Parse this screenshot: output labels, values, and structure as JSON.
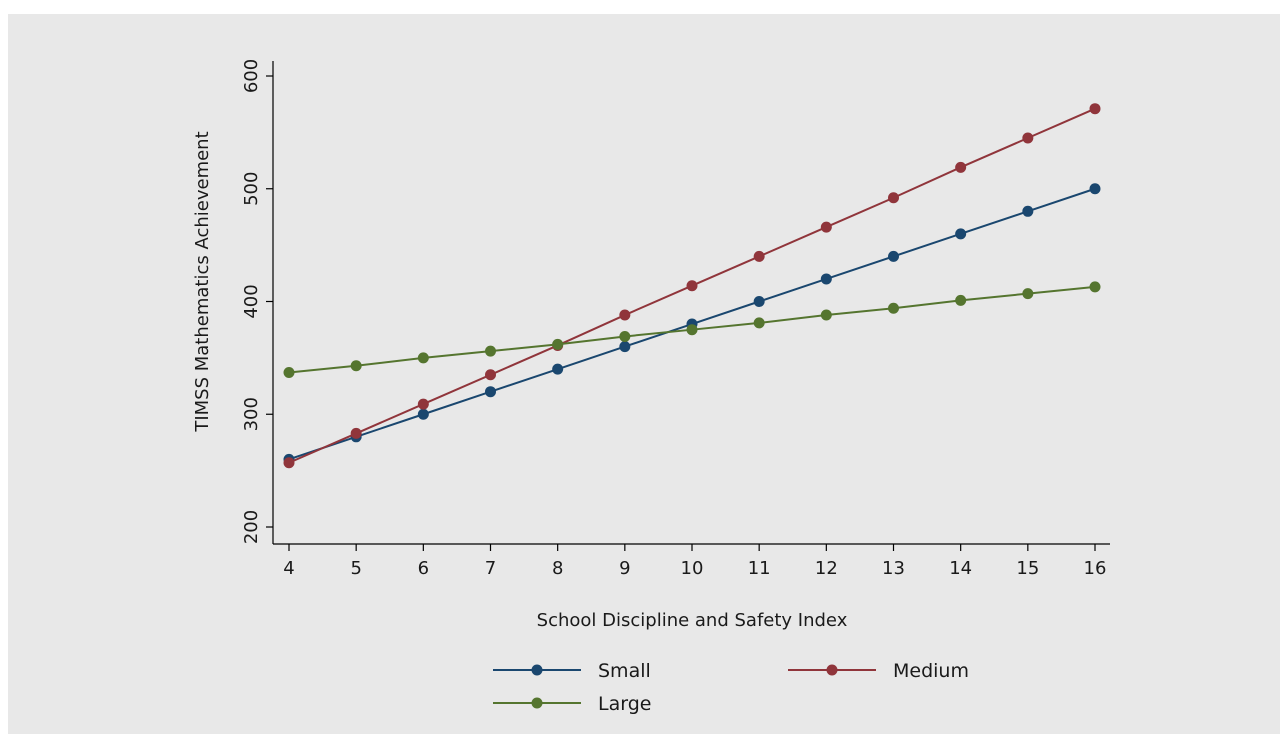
{
  "chart_data": {
    "type": "line",
    "title": "",
    "xlabel": "School Discipline and Safety Index",
    "ylabel": "TIMSS Mathematics Achievement",
    "x": [
      4,
      5,
      6,
      7,
      8,
      9,
      10,
      11,
      12,
      13,
      14,
      15,
      16
    ],
    "xlim": [
      4,
      16
    ],
    "ylim": [
      200,
      600
    ],
    "yticks": [
      200,
      300,
      400,
      500,
      600
    ],
    "grid": false,
    "legend_position": "bottom",
    "series": [
      {
        "name": "Small",
        "color": "#1a476f",
        "values": [
          260,
          280,
          300,
          320,
          340,
          360,
          380,
          400,
          420,
          440,
          460,
          480,
          500
        ]
      },
      {
        "name": "Medium",
        "color": "#90353b",
        "values": [
          257,
          283,
          309,
          335,
          361,
          388,
          414,
          440,
          466,
          492,
          519,
          545,
          571
        ]
      },
      {
        "name": "Large",
        "color": "#55752f",
        "values": [
          337,
          343,
          350,
          356,
          362,
          369,
          375,
          381,
          388,
          394,
          401,
          407,
          413
        ]
      }
    ]
  }
}
